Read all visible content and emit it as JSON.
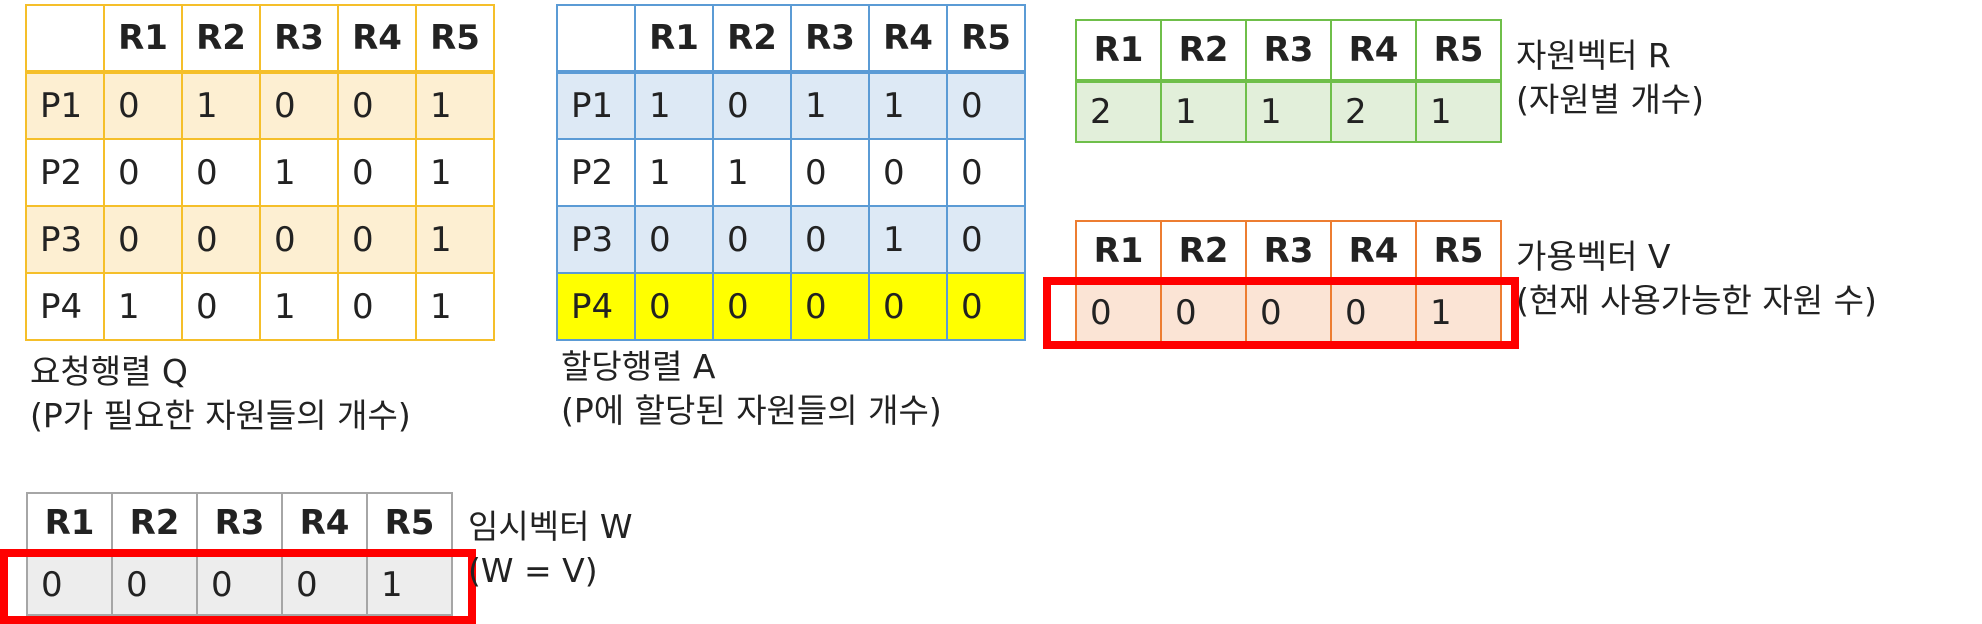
{
  "request_matrix": {
    "headers": [
      "R1",
      "R2",
      "R3",
      "R4",
      "R5"
    ],
    "rows": [
      {
        "label": "P1",
        "values": [
          "0",
          "1",
          "0",
          "0",
          "1"
        ]
      },
      {
        "label": "P2",
        "values": [
          "0",
          "0",
          "1",
          "0",
          "1"
        ]
      },
      {
        "label": "P3",
        "values": [
          "0",
          "0",
          "0",
          "0",
          "1"
        ]
      },
      {
        "label": "P4",
        "values": [
          "1",
          "0",
          "1",
          "0",
          "1"
        ]
      }
    ],
    "caption_line1": "요청행렬 Q",
    "caption_line2": "(P가 필요한 자원들의 개수)"
  },
  "allocation_matrix": {
    "headers": [
      "R1",
      "R2",
      "R3",
      "R4",
      "R5"
    ],
    "rows": [
      {
        "label": "P1",
        "values": [
          "1",
          "0",
          "1",
          "1",
          "0"
        ]
      },
      {
        "label": "P2",
        "values": [
          "1",
          "1",
          "0",
          "0",
          "0"
        ]
      },
      {
        "label": "P3",
        "values": [
          "0",
          "0",
          "0",
          "1",
          "0"
        ]
      },
      {
        "label": "P4",
        "values": [
          "0",
          "0",
          "0",
          "0",
          "0"
        ]
      }
    ],
    "caption_line1": "할당행렬 A",
    "caption_line2": "(P에 할당된 자원들의 개수)"
  },
  "resource_vector": {
    "headers": [
      "R1",
      "R2",
      "R3",
      "R4",
      "R5"
    ],
    "values": [
      "2",
      "1",
      "1",
      "2",
      "1"
    ],
    "caption_line1": "자원벡터 R",
    "caption_line2": "(자원별 개수)"
  },
  "available_vector": {
    "headers": [
      "R1",
      "R2",
      "R3",
      "R4",
      "R5"
    ],
    "values": [
      "0",
      "0",
      "0",
      "0",
      "1"
    ],
    "caption_line1": "가용벡터 V",
    "caption_line2": "(현재 사용가능한 자원 수)"
  },
  "temp_vector": {
    "headers": [
      "R1",
      "R2",
      "R3",
      "R4",
      "R5"
    ],
    "values": [
      "0",
      "0",
      "0",
      "0",
      "1"
    ],
    "caption_line1": "임시벡터 W",
    "caption_line2": "(W = V)"
  },
  "colors": {
    "request": "#f5bf2a",
    "allocation": "#5b9bd5",
    "resource": "#6fbf4a",
    "available": "#ed7d31",
    "temp": "#a6a6a6",
    "highlight_row": "#ffff00",
    "highlight_box": "#ff0000"
  }
}
